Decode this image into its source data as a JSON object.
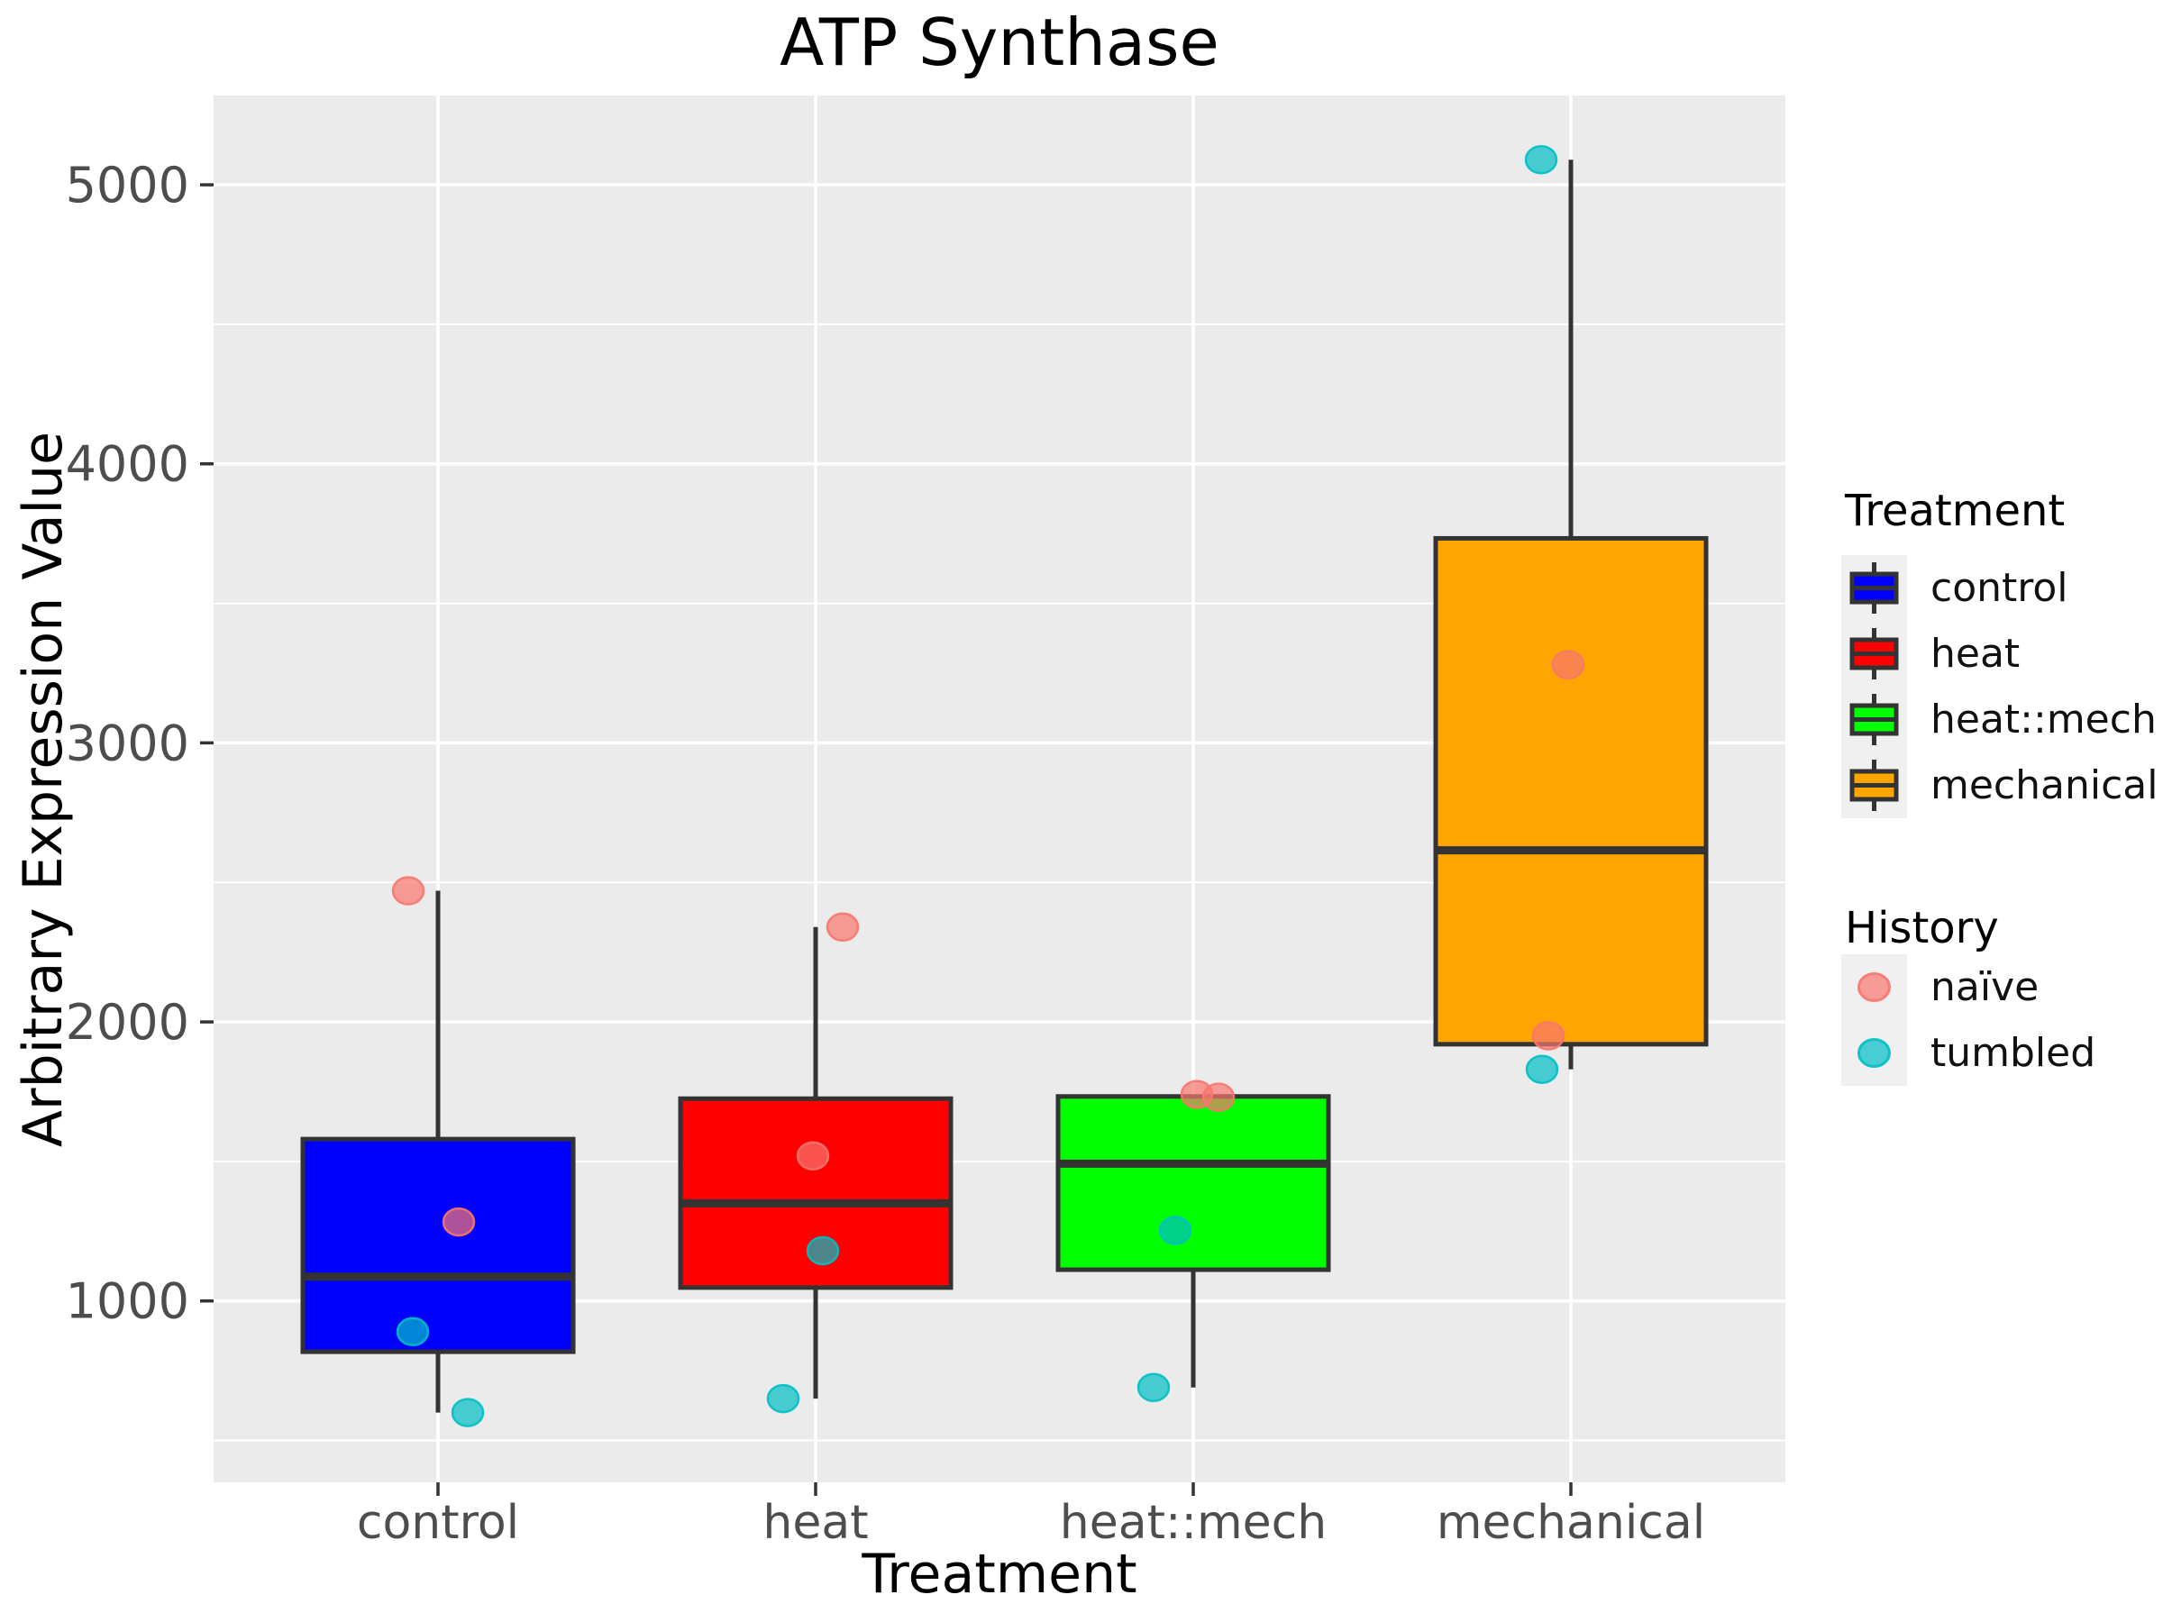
{
  "chart_data": {
    "type": "box",
    "title": "ATP Synthase",
    "xlabel": "Treatment",
    "ylabel": "Arbitrary Expression Value",
    "categories": [
      "control",
      "heat",
      "heat::mech",
      "mechanical"
    ],
    "ylim": [
      350,
      5320
    ],
    "yticks_major": [
      1000,
      2000,
      3000,
      4000,
      5000
    ],
    "yticks_minor": [
      500,
      1500,
      2500,
      3500,
      4500
    ],
    "grid": "on",
    "legend_position": "right",
    "panel_bg": "#EBEBEB",
    "grid_color": "#FFFFFF",
    "box_border_color": "#333333",
    "tick_color": "#333333",
    "tick_label_color": "#4D4D4D",
    "title_color": "#000000",
    "point_alpha": 0.7,
    "history_colors": {
      "naïve": "#F8766D",
      "tumbled": "#00BFC4"
    },
    "groups": [
      {
        "treatment": "control",
        "fill": "#0000FF",
        "stats": {
          "min": 600,
          "q1": 818,
          "median": 1087,
          "q3": 1580,
          "max": 2470
        },
        "points": [
          {
            "value": 2470,
            "history": "naïve",
            "jitter": -33
          },
          {
            "value": 1283,
            "history": "naïve",
            "jitter": 23
          },
          {
            "value": 890,
            "history": "tumbled",
            "jitter": -28
          },
          {
            "value": 600,
            "history": "tumbled",
            "jitter": 33
          }
        ]
      },
      {
        "treatment": "heat",
        "fill": "#FF0000",
        "stats": {
          "min": 650,
          "q1": 1048,
          "median": 1350,
          "q3": 1725,
          "max": 2340
        },
        "points": [
          {
            "value": 2340,
            "history": "naïve",
            "jitter": 30
          },
          {
            "value": 1520,
            "history": "naïve",
            "jitter": -3
          },
          {
            "value": 1180,
            "history": "tumbled",
            "jitter": 8
          },
          {
            "value": 650,
            "history": "tumbled",
            "jitter": -36
          }
        ]
      },
      {
        "treatment": "heat::mech",
        "fill": "#00FF00",
        "stats": {
          "min": 690,
          "q1": 1112,
          "median": 1492,
          "q3": 1733,
          "max": 1740
        },
        "points": [
          {
            "value": 1740,
            "history": "naïve",
            "jitter": 4
          },
          {
            "value": 1730,
            "history": "naïve",
            "jitter": 28
          },
          {
            "value": 1253,
            "history": "tumbled",
            "jitter": -20
          },
          {
            "value": 690,
            "history": "tumbled",
            "jitter": -44
          }
        ]
      },
      {
        "treatment": "mechanical",
        "fill": "#FFA500",
        "stats": {
          "min": 1830,
          "q1": 1920,
          "median": 2615,
          "q3": 3733,
          "max": 5090
        },
        "points": [
          {
            "value": 5090,
            "history": "tumbled",
            "jitter": -33
          },
          {
            "value": 3280,
            "history": "naïve",
            "jitter": -3
          },
          {
            "value": 1950,
            "history": "naïve",
            "jitter": -25
          },
          {
            "value": 1830,
            "history": "tumbled",
            "jitter": -32
          }
        ]
      }
    ],
    "legend": {
      "treatment_title": "Treatment",
      "treatment_items": [
        {
          "label": "control",
          "color": "#0000FF"
        },
        {
          "label": "heat",
          "color": "#FF0000"
        },
        {
          "label": "heat::mech",
          "color": "#00FF00"
        },
        {
          "label": "mechanical",
          "color": "#FFA500"
        }
      ],
      "history_title": "History",
      "history_items": [
        {
          "label": "naïve",
          "color": "#F8766D"
        },
        {
          "label": "tumbled",
          "color": "#00BFC4"
        }
      ]
    }
  }
}
